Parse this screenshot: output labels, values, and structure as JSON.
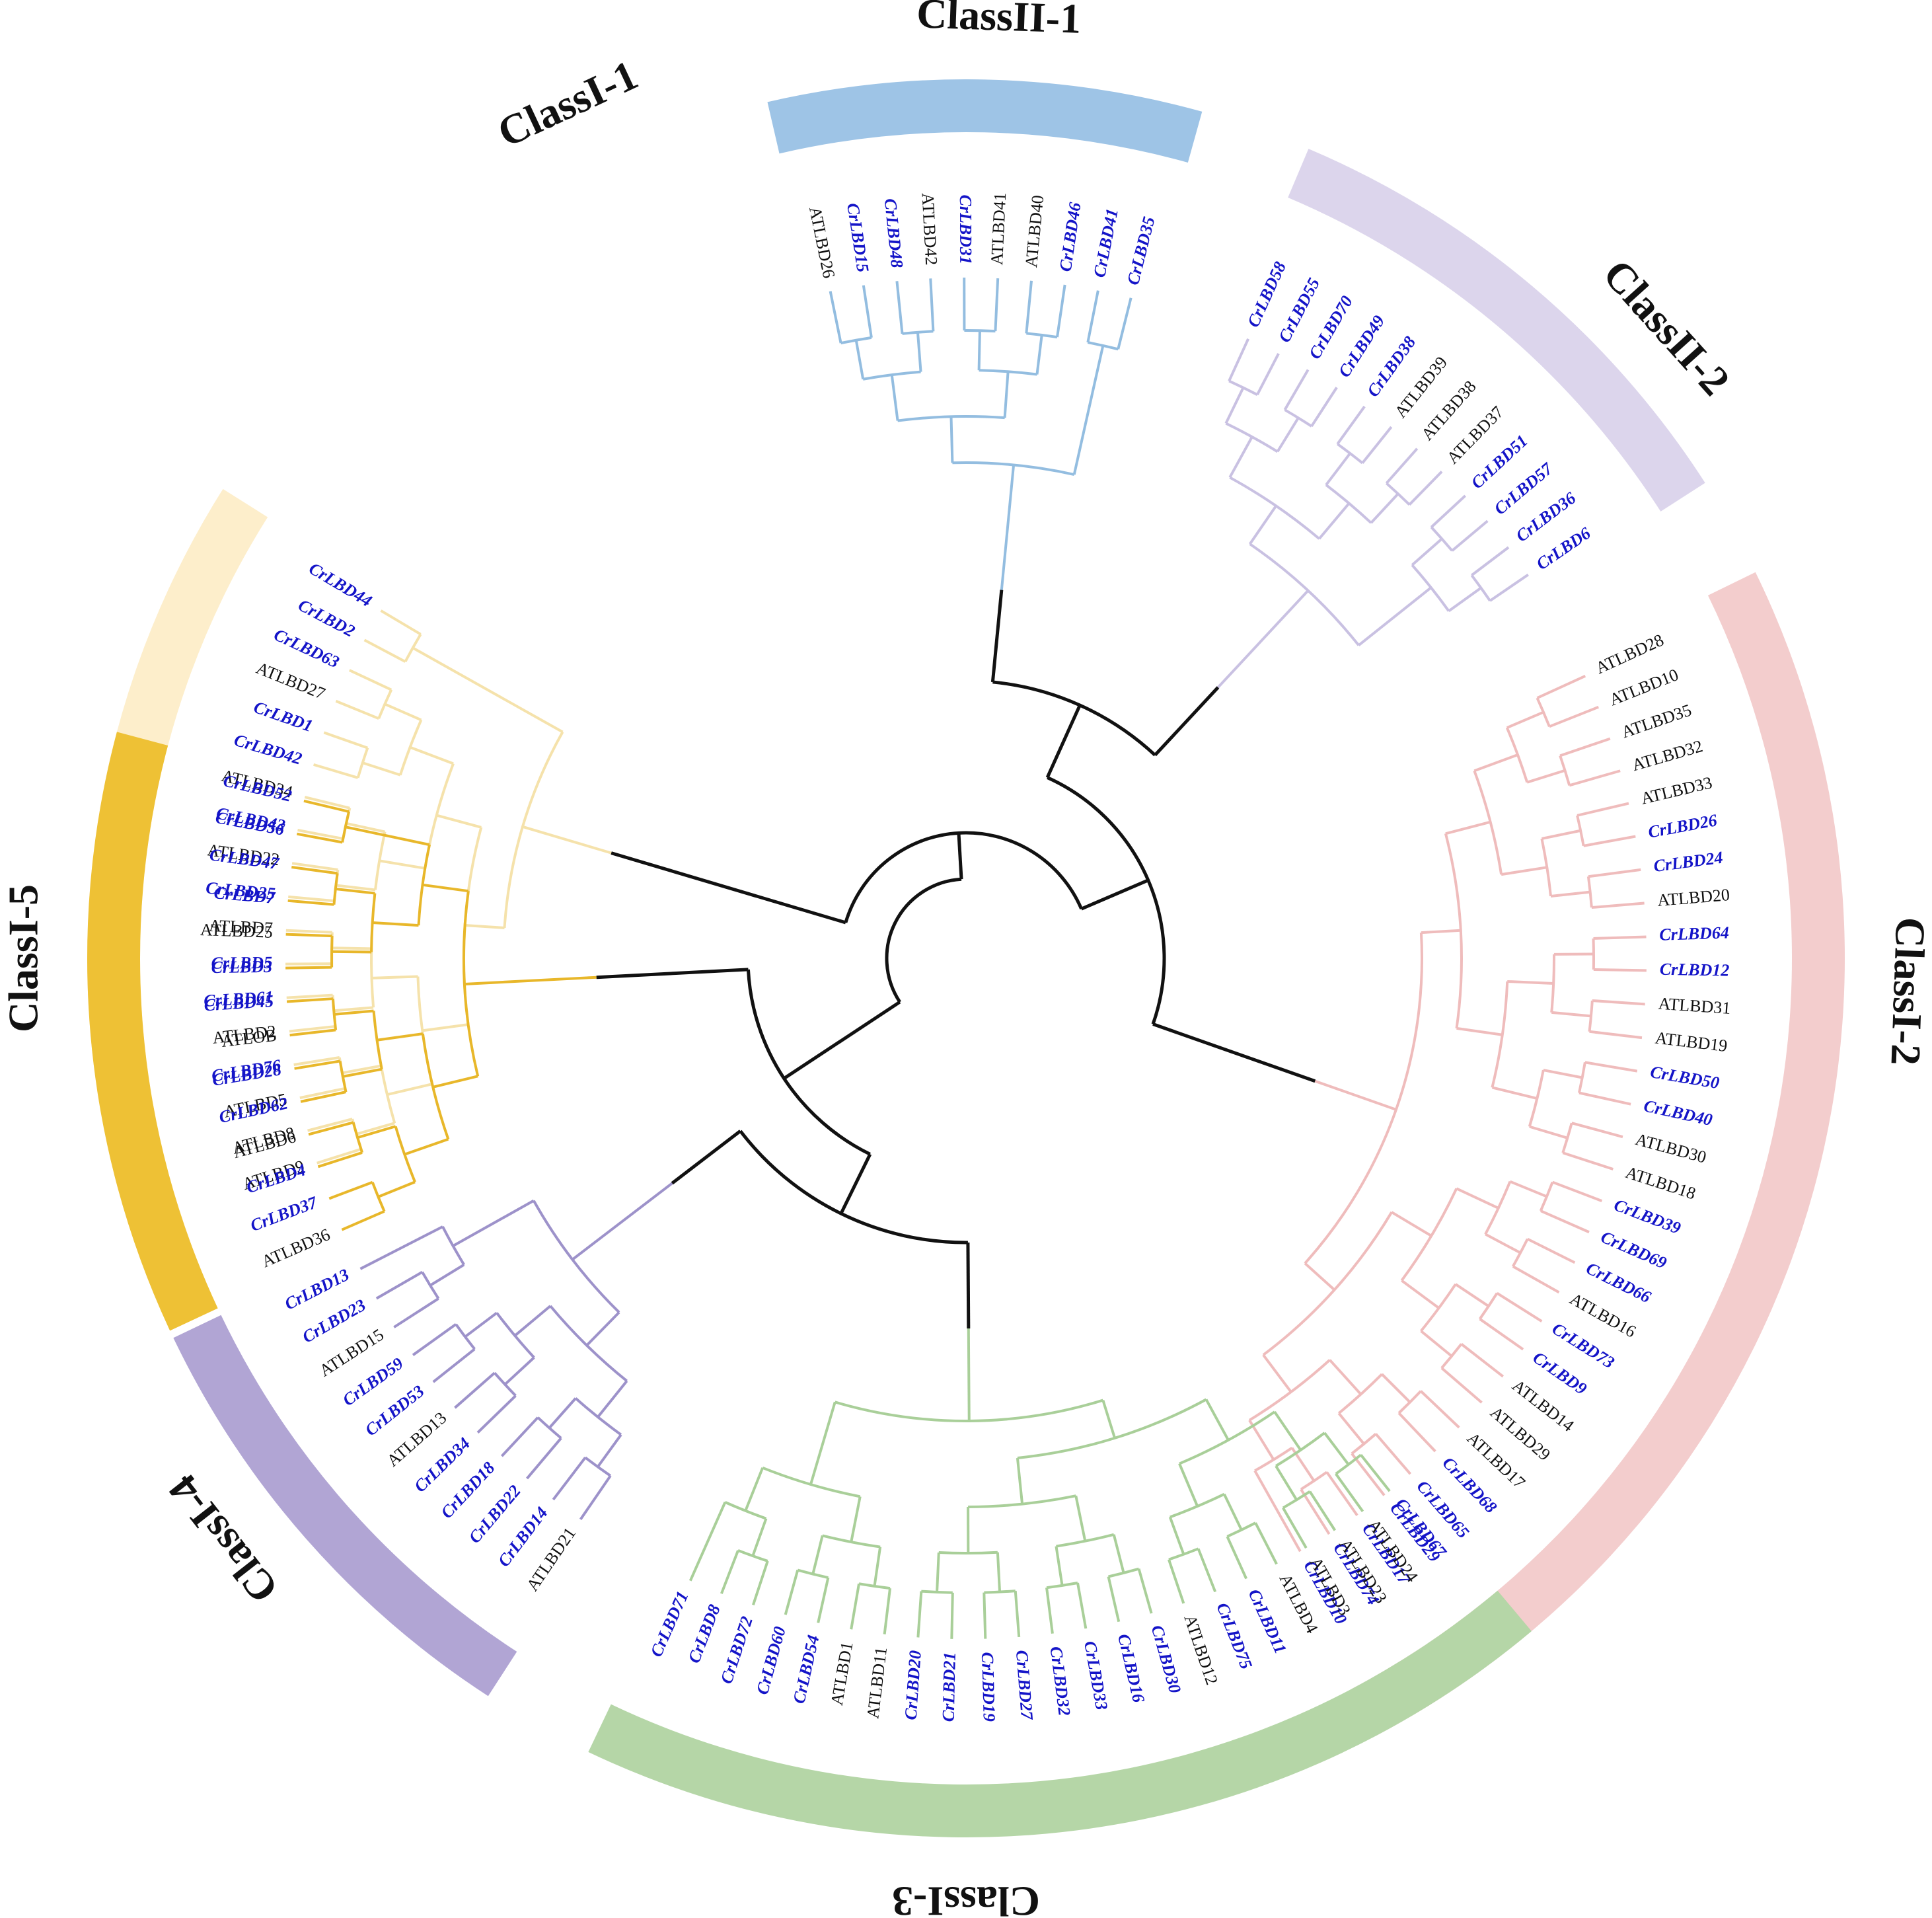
{
  "title": "",
  "leaf_colors": {
    "cr": "#1414c8",
    "at": "#111111"
  },
  "root_color": "#111111",
  "clades": [
    {
      "name": "ClassI-1",
      "band_color": "#fdeecb",
      "branch_color": "#f5e2ab",
      "leaves": [
        "ATLBD9",
        "ATLBD8",
        "ATLBD5",
        "CrLBD76",
        "ATLBD2",
        "CrLBD61",
        "CrLBD5",
        "ATLBD7",
        "CrLBD25",
        "ATLBD22",
        "CrLBD43",
        "ATLBD34",
        "CrLBD42",
        "CrLBD1",
        "ATLBD27",
        "CrLBD63",
        "CrLBD2",
        "CrLBD44"
      ]
    },
    {
      "name": "ClassII-1",
      "band_color": "#9ec4e6",
      "branch_color": "#93bde0",
      "leaves": [
        "ATLBD26",
        "CrLBD15",
        "CrLBD48",
        "ATLBD42",
        "CrLBD31",
        "ATLBD41",
        "ATLBD40",
        "CrLBD46",
        "CrLBD41",
        "CrLBD35"
      ]
    },
    {
      "name": "ClassII-2",
      "band_color": "#dcd5ec",
      "branch_color": "#c9c1e2",
      "leaves": [
        "CrLBD58",
        "CrLBD55",
        "CrLBD70",
        "CrLBD49",
        "CrLBD38",
        "ATLBD39",
        "ATLBD38",
        "ATLBD37",
        "CrLBD51",
        "CrLBD57",
        "CrLBD36",
        "CrLBD6"
      ]
    },
    {
      "name": "ClassI-2",
      "band_color": "#f3cdcd",
      "branch_color": "#efbcbc",
      "leaves": [
        "ATLBD28",
        "ATLBD10",
        "ATLBD35",
        "ATLBD32",
        "ATLBD33",
        "CrLBD26",
        "CrLBD24",
        "ATLBD20",
        "CrLBD64",
        "CrLBD12",
        "ATLBD31",
        "ATLBD19",
        "CrLBD50",
        "CrLBD40",
        "ATLBD30",
        "ATLBD18",
        "CrLBD39",
        "CrLBD69",
        "CrLBD66",
        "ATLBD16",
        "CrLBD73",
        "CrLBD9",
        "ATLBD14",
        "ATLBD29",
        "ATLBD17",
        "CrLBD68",
        "CrLBD65",
        "CrLBD29",
        "CrLBD17",
        "CrLBD74",
        "CrLBD10"
      ]
    },
    {
      "name": "ClassI-3",
      "band_color": "#b5d6a7",
      "branch_color": "#a9cf99",
      "leaves": [
        "CrLBD67",
        "ATLBD24",
        "ATLBD23",
        "ATLBD3",
        "ATLBD4",
        "CrLBD11",
        "CrLBD75",
        "ATLBD12",
        "CrLBD30",
        "CrLBD16",
        "CrLBD33",
        "CrLBD32",
        "CrLBD27",
        "CrLBD19",
        "CrLBD21",
        "CrLBD20",
        "ATLBD11",
        "ATLBD1",
        "CrLBD54",
        "CrLBD60",
        "CrLBD72",
        "CrLBD8",
        "CrLBD71"
      ]
    },
    {
      "name": "ClassI-4",
      "band_color": "#b1a5d4",
      "branch_color": "#9d92ca",
      "leaves": [
        "ATLBD21",
        "CrLBD14",
        "CrLBD22",
        "CrLBD18",
        "CrLBD34",
        "ATLBD13",
        "CrLBD53",
        "CrLBD59",
        "ATLBD15",
        "CrLBD23",
        "CrLBD13"
      ]
    },
    {
      "name": "ClassI-5",
      "band_color": "#eec135",
      "branch_color": "#e8b72a",
      "leaves": [
        "ATLBD36",
        "CrLBD37",
        "CrLBD4",
        "ATLBD6",
        "CrLBD62",
        "CrLBD28",
        "ATLOB",
        "CrLBD45",
        "CrLBD3",
        "ATLBD25",
        "CrLBD7",
        "CrLBD47",
        "CrLBD56",
        "CrLBD52"
      ]
    }
  ]
}
